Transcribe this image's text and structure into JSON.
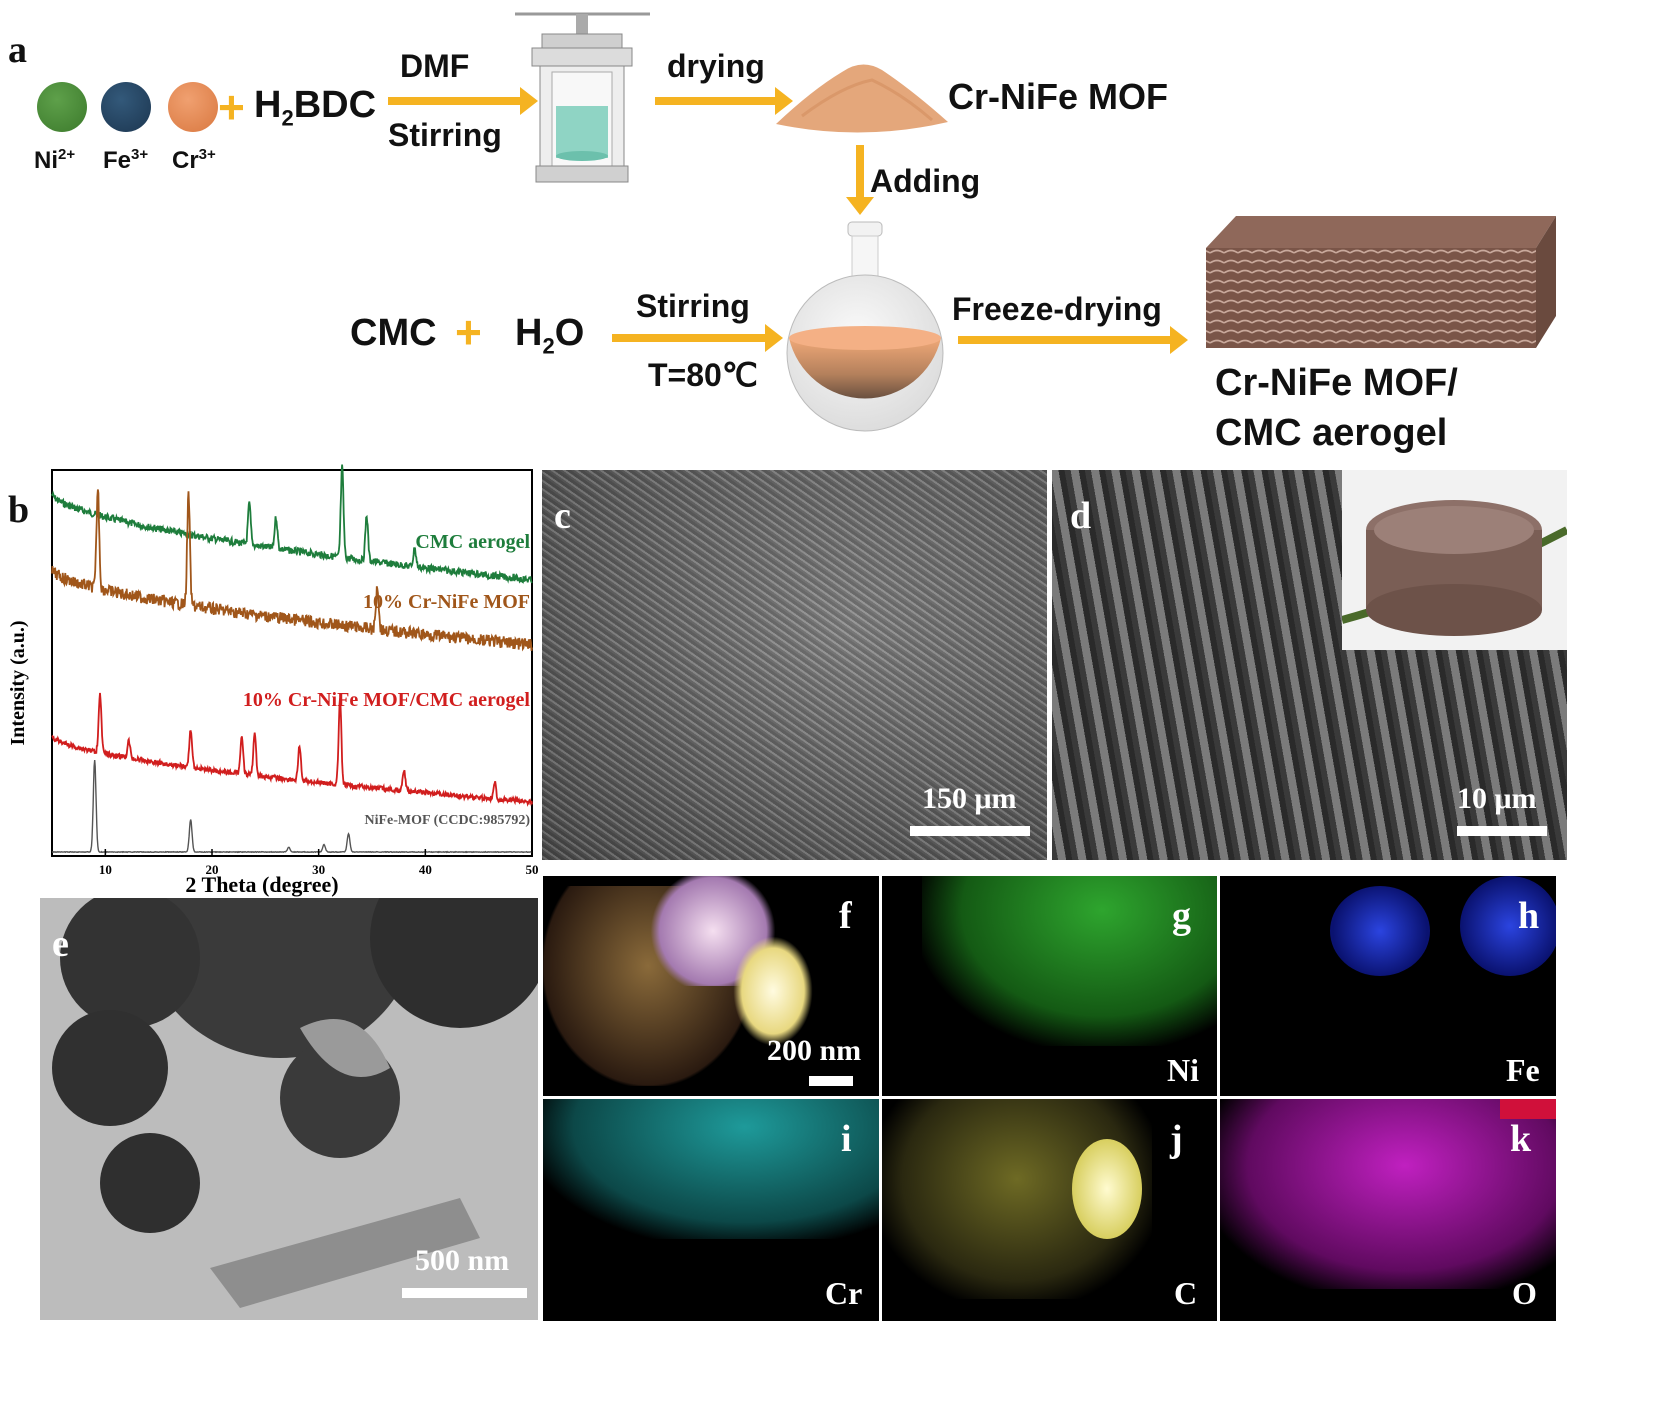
{
  "panel_a": {
    "letter": "a",
    "ions": [
      {
        "label": "Ni",
        "charge": "2+",
        "color": "#4a8a3a"
      },
      {
        "label": "Fe",
        "charge": "3+",
        "color": "#25445f"
      },
      {
        "label": "Cr",
        "charge": "3+",
        "color": "#e98a52"
      }
    ],
    "plus": "+",
    "linker_main": "H",
    "linker_sub": "2",
    "linker_tail": "BDC",
    "step1_top": "DMF",
    "step1_bottom": "Stirring",
    "step2_top": "drying",
    "product1": "Cr-NiFe MOF",
    "step3": "Adding",
    "reagent1": "CMC",
    "reagent2_main": "H",
    "reagent2_sub": "2",
    "reagent2_tail": "O",
    "step4_top": "Stirring",
    "step4_bottom": "T=80℃",
    "step5": "Freeze-drying",
    "product2_line1": "Cr-NiFe MOF/",
    "product2_line2": "CMC aerogel"
  },
  "panel_b": {
    "letter": "b",
    "chart_data": {
      "type": "line",
      "xlabel": "2 Theta (degree)",
      "ylabel": "Intensity (a.u.)",
      "xlim": [
        5,
        50
      ],
      "xticks": [
        10,
        20,
        30,
        40,
        50
      ],
      "series": [
        {
          "name": "CMC aerogel",
          "color": "#1e7d3c",
          "peaks": [
            [
              23.5,
              0.45
            ],
            [
              26,
              0.35
            ],
            [
              32.2,
              1.0
            ],
            [
              34.5,
              0.5
            ],
            [
              39,
              0.2
            ]
          ]
        },
        {
          "name": "10% Cr-NiFe MOF",
          "color": "#a0561a",
          "peaks": [
            [
              9.3,
              0.9
            ],
            [
              17.8,
              1.0
            ],
            [
              35.5,
              0.4
            ]
          ]
        },
        {
          "name": "10% Cr-NiFe MOF/CMC aerogel",
          "color": "#d11e1e",
          "peaks": [
            [
              9.5,
              0.7
            ],
            [
              12.2,
              0.2
            ],
            [
              18,
              0.45
            ],
            [
              22.8,
              0.45
            ],
            [
              24,
              0.5
            ],
            [
              28.2,
              0.4
            ],
            [
              32,
              1.0
            ],
            [
              38,
              0.25
            ],
            [
              46.5,
              0.2
            ]
          ]
        },
        {
          "name": "NiFe-MOF (CCDC:985792)",
          "color": "#555555",
          "peaks": [
            [
              9.0,
              1.0
            ],
            [
              18.0,
              0.35
            ],
            [
              32.8,
              0.2
            ],
            [
              30.5,
              0.08
            ],
            [
              27.2,
              0.05
            ]
          ]
        }
      ]
    }
  },
  "panel_c": {
    "letter": "c",
    "scale": "150 μm"
  },
  "panel_d": {
    "letter": "d",
    "scale": "10 μm"
  },
  "panel_e": {
    "letter": "e",
    "scale": "500 nm"
  },
  "eds_panels": [
    {
      "letter": "f",
      "element": "",
      "scale": "200 nm",
      "color": "#ffffff"
    },
    {
      "letter": "g",
      "element": "Ni",
      "color": "#2d8a2d"
    },
    {
      "letter": "h",
      "element": "Fe",
      "color": "#2233bb"
    },
    {
      "letter": "i",
      "element": "Cr",
      "color": "#1b8a8a"
    },
    {
      "letter": "j",
      "element": "C",
      "color": "#c6c24a"
    },
    {
      "letter": "k",
      "element": "O",
      "color": "#b01ab0"
    }
  ]
}
